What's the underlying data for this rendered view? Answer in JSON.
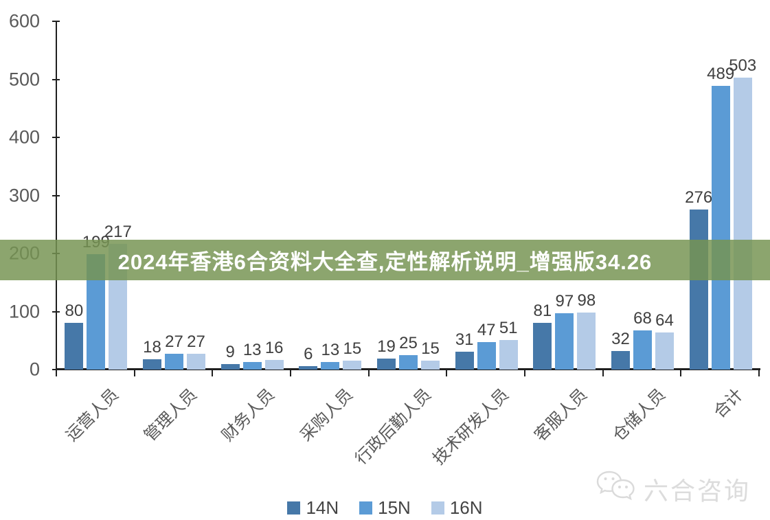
{
  "banner": {
    "text": "2024年香港6合资料大全查,定性解析说明_增强版34.26",
    "bg_color": "#769452",
    "text_color": "#ffffff"
  },
  "chart_data": {
    "type": "bar",
    "title": "",
    "xlabel": "",
    "ylabel": "",
    "categories": [
      "运营人员",
      "管理人员",
      "财务人员",
      "采购人员",
      "行政后勤人员",
      "技术研发人员",
      "客服人员",
      "仓储人员",
      "合计"
    ],
    "series": [
      {
        "name": "14N",
        "color": "#4678A8",
        "values": [
          80,
          18,
          9,
          6,
          19,
          31,
          81,
          32,
          276
        ]
      },
      {
        "name": "15N",
        "color": "#5B9BD5",
        "values": [
          199,
          27,
          13,
          13,
          25,
          47,
          97,
          68,
          489
        ]
      },
      {
        "name": "16N",
        "color": "#B4CBE7",
        "values": [
          217,
          27,
          16,
          15,
          15,
          51,
          98,
          64,
          503
        ]
      }
    ],
    "ylim": [
      0,
      600
    ],
    "yticks": [
      0,
      100,
      200,
      300,
      400,
      500,
      600
    ],
    "grid": false,
    "legend_position": "bottom",
    "axis_color": "#1f1f1f",
    "tick_label_color": "#595959",
    "value_label_color": "#3f3f3f"
  },
  "watermark": {
    "text": "六合咨询",
    "icon": "wechat-icon",
    "color": "#d7d7d7"
  }
}
